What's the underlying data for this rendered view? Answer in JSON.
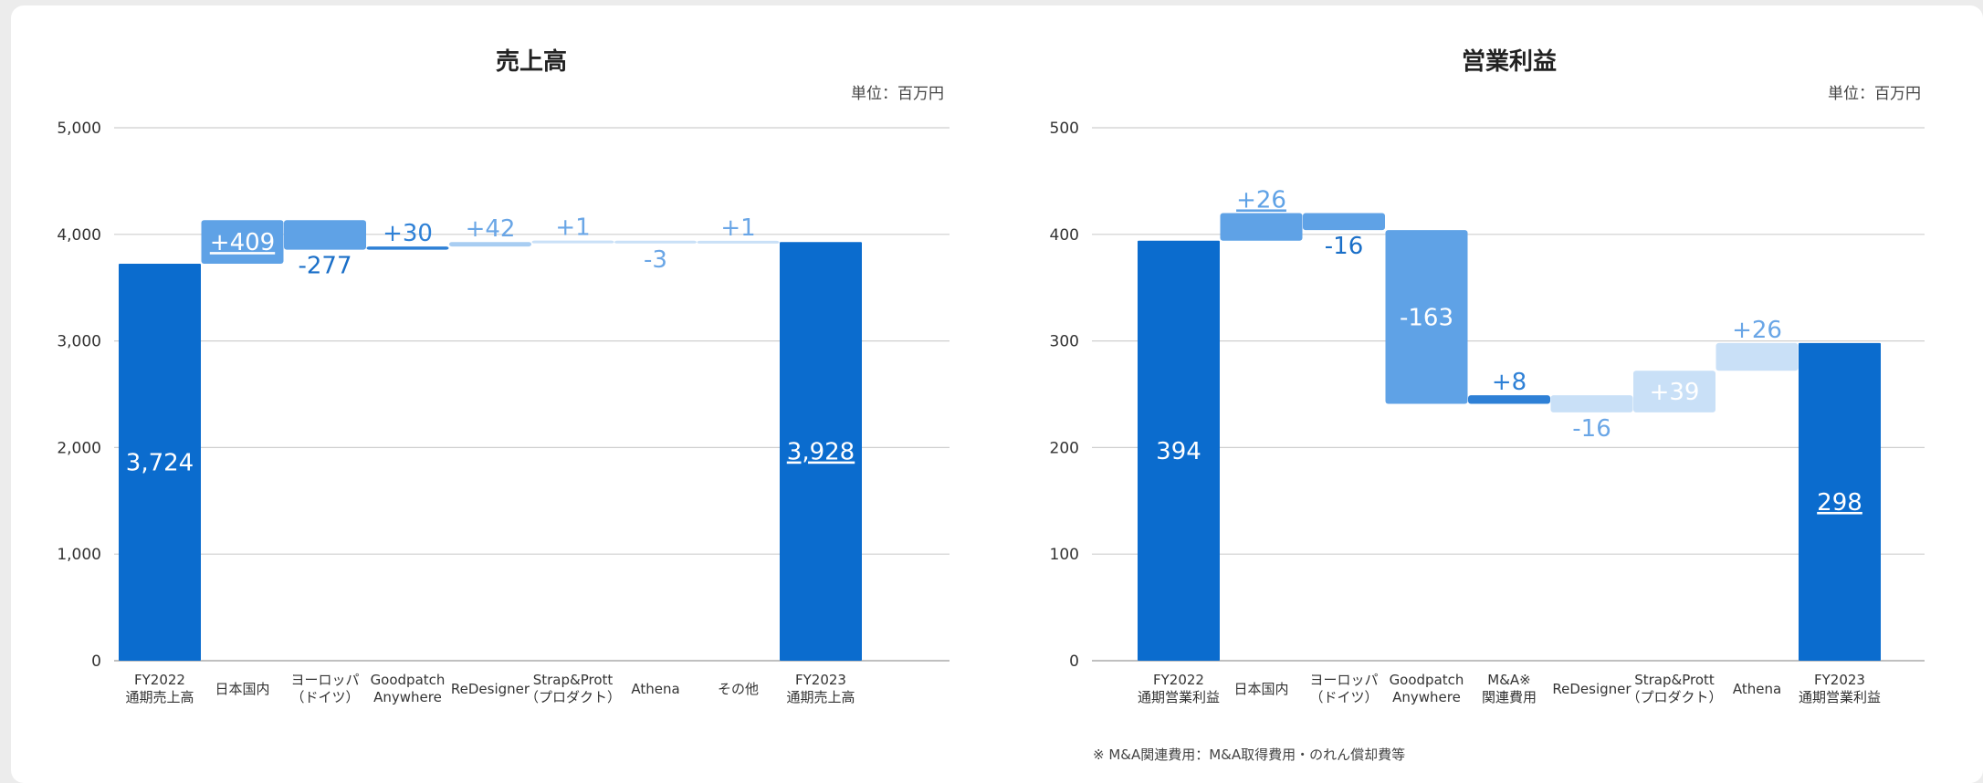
{
  "footnote": "※ M&A関連費用：M&A取得費用・のれん償却費等",
  "chart_data": [
    {
      "type": "bar",
      "subtype": "waterfall",
      "title": "売上高",
      "unit_label": "単位：百万円",
      "ylim": [
        0,
        5000
      ],
      "yticks": [
        "0",
        "1,000",
        "2,000",
        "3,000",
        "4,000",
        "5,000"
      ],
      "grid": true,
      "categories": [
        [
          "FY2022",
          "通期売上高"
        ],
        [
          "日本国内"
        ],
        [
          "ヨーロッパ",
          "（ドイツ）"
        ],
        [
          "Goodpatch",
          "Anywhere"
        ],
        [
          "ReDesigner"
        ],
        [
          "Strap&Prott",
          "（プロダクト）"
        ],
        [
          "Athena"
        ],
        [
          "その他"
        ],
        [
          "FY2023",
          "通期売上高"
        ]
      ],
      "values": [
        3724,
        409,
        -277,
        30,
        42,
        1,
        -3,
        1,
        3928
      ],
      "value_labels": [
        "3,724",
        "+409",
        "-277",
        "+30",
        "+42",
        "+1",
        "-3",
        "+1",
        "3,928"
      ],
      "kinds": [
        "total",
        "delta",
        "delta",
        "delta",
        "delta",
        "delta",
        "delta",
        "delta",
        "total"
      ],
      "colors": [
        "#0b6cce",
        "#5fa2e6",
        "#5fa2e6",
        "#2e80d6",
        "#a8cdf2",
        "#c9e0f7",
        "#c9e0f7",
        "#c9e0f7",
        "#0b6cce"
      ],
      "underlined_labels": [
        1,
        8
      ]
    },
    {
      "type": "bar",
      "subtype": "waterfall",
      "title": "営業利益",
      "unit_label": "単位：百万円",
      "ylim": [
        0,
        500
      ],
      "yticks": [
        "0",
        "100",
        "200",
        "300",
        "400",
        "500"
      ],
      "grid": true,
      "categories": [
        [
          "FY2022",
          "通期営業利益"
        ],
        [
          "日本国内"
        ],
        [
          "ヨーロッパ",
          "（ドイツ）"
        ],
        [
          "Goodpatch",
          "Anywhere"
        ],
        [
          "M&A※",
          "関連費用"
        ],
        [
          "ReDesigner"
        ],
        [
          "Strap&Prott",
          "（プロダクト）"
        ],
        [
          "Athena"
        ],
        [
          "FY2023",
          "通期営業利益"
        ]
      ],
      "values": [
        394,
        26,
        -16,
        -163,
        8,
        -16,
        39,
        26,
        298
      ],
      "value_labels": [
        "394",
        "+26",
        "-16",
        "-163",
        "+8",
        "-16",
        "+39",
        "+26",
        "298"
      ],
      "kinds": [
        "total",
        "delta",
        "delta",
        "delta",
        "delta",
        "delta",
        "delta",
        "delta",
        "total"
      ],
      "colors": [
        "#0b6cce",
        "#5fa2e6",
        "#5fa2e6",
        "#5fa2e6",
        "#2e80d6",
        "#c9e0f7",
        "#c9e0f7",
        "#c9e0f7",
        "#0b6cce"
      ],
      "underlined_labels": [
        1,
        8
      ]
    }
  ]
}
